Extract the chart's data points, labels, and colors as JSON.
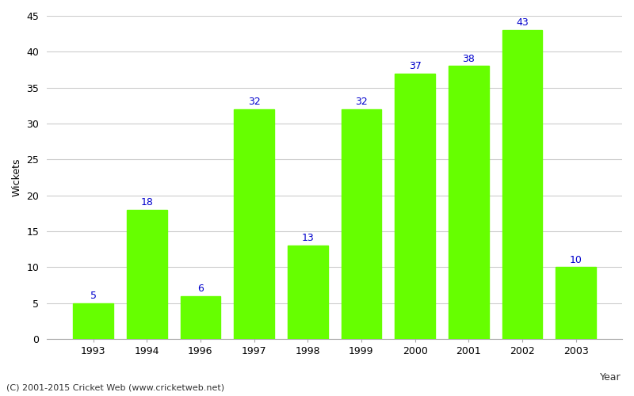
{
  "categories": [
    "1993",
    "1994",
    "1996",
    "1997",
    "1998",
    "1999",
    "2000",
    "2001",
    "2002",
    "2003"
  ],
  "values": [
    5,
    18,
    6,
    32,
    13,
    32,
    37,
    38,
    43,
    10
  ],
  "bar_color": "#66ff00",
  "bar_edge_color": "#66ff00",
  "label_color": "#0000cc",
  "ylabel": "Wickets",
  "xlabel": "Year",
  "ylim": [
    0,
    45
  ],
  "yticks": [
    0,
    5,
    10,
    15,
    20,
    25,
    30,
    35,
    40,
    45
  ],
  "grid_color": "#cccccc",
  "background_color": "#ffffff",
  "label_fontsize": 9,
  "axis_label_fontsize": 9,
  "tick_fontsize": 9,
  "footnote": "(C) 2001-2015 Cricket Web (www.cricketweb.net)"
}
